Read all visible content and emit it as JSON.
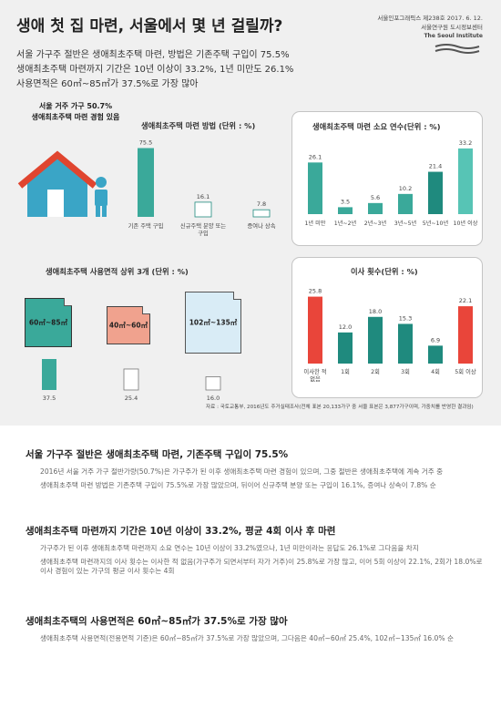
{
  "header": {
    "title": "생애 첫 집 마련, 서울에서 몇 년 걸릴까?",
    "series_no": "서울인포그래픽스 제238호 2017. 6. 12.",
    "org": "서울연구원 도시정보센터",
    "org_en": "The Seoul Institute",
    "subtitles": [
      "서울 가구주 절반은 생애최초주택 마련, 방법은 기존주택 구입이 75.5%",
      "생애최초주택 마련까지 기간은 10년 이상이 33.2%, 1년 미만도 26.1%",
      "사용면적은 60㎡~85㎡가 37.5%로 가장 많아"
    ]
  },
  "house_note": {
    "line1": "서울 거주 가구 50.7%",
    "line2": "생애최초주택 마련 경험 있음"
  },
  "colors": {
    "teal": "#3aa99a",
    "teal_dark": "#1f8a7e",
    "red": "#e9453a",
    "salmon": "#f0a28e",
    "light_blue": "#d9ecf6",
    "background": "#f0f0f0",
    "house_blue": "#3aa5c6",
    "roof_red": "#e0452f"
  },
  "chart_data": [
    {
      "type": "bar",
      "title": "생애최초주택 마련 방법 (단위 : %)",
      "categories": [
        "기존 주택 구입",
        "신규주택 분양 또는 구입",
        "증여나 상속"
      ],
      "values": [
        75.5,
        16.1,
        7.8
      ]
    },
    {
      "type": "bar",
      "title": "생애최초주택 마련 소요 연수(단위 : %)",
      "categories": [
        "1년 미만",
        "1년~2년",
        "2년~3년",
        "3년~5년",
        "5년~10년",
        "10년 이상"
      ],
      "values": [
        26.1,
        3.5,
        5.6,
        10.2,
        21.4,
        33.2
      ]
    },
    {
      "type": "bar",
      "title": "생애최초주택 사용면적 상위 3개 (단위 : %)",
      "categories": [
        "60㎡~85㎡",
        "40㎡~60㎡",
        "102㎡~135㎡"
      ],
      "values": [
        37.5,
        25.4,
        16.0
      ]
    },
    {
      "type": "bar",
      "title": "이사 횟수(단위 : %)",
      "categories": [
        "이사한 적 없음",
        "1회",
        "2회",
        "3회",
        "4회",
        "5회 이상"
      ],
      "values": [
        25.8,
        12.0,
        18.0,
        15.3,
        6.9,
        22.1
      ]
    }
  ],
  "source": "자료 : 국토교통부, 2016년도 주거실태조사(전체 표본 20,133가구 중 서울 표본은 3,877가구이며, 가중치를 반영한 결과임)",
  "sections": [
    {
      "heading": "서울 가구주 절반은 생애최초주택 마련, 기존주택 구입이 75.5%",
      "paras": [
        "2016년 서울 거주 가구 절반가량(50.7%)은 가구주가 된 이후 생애최초주택 마련 경험이 있으며, 그중 절반은 생애최초주택에 계속 거주 중",
        "생애최초주택 마련 방법은 기존주택 구입이 75.5%로 가장 많았으며, 뒤이어 신규주택 분양 또는 구입이 16.1%, 증여나 상속이 7.8% 순"
      ]
    },
    {
      "heading": "생애최초주택 마련까지 기간은 10년 이상이 33.2%, 평균 4회 이사 후 마련",
      "paras": [
        "가구주가 된 이후 생애최초주택 마련까지 소요 연수는 10년 이상이 33.2%였으나, 1년 미만이라는 응답도 26.1%로 그다음을 차지",
        "생애최초주택 마련까지의 이사 횟수는 이사한 적 없음(가구주가 되면서부터 자가 거주)이 25.8%로 가장 많고, 이어 5회 이상이 22.1%, 2회가 18.0%로 이사 경험이 있는 가구의 평균 이사 횟수는 4회"
      ]
    },
    {
      "heading": "생애최초주택의 사용면적은 60㎡~85㎡가 37.5%로 가장 많아",
      "paras": [
        "생애최초주택 사용면적(전용면적 기준)은 60㎡~85㎡가 37.5%로 가장 많았으며, 그다음은 40㎡~60㎡ 25.4%, 102㎡~135㎡ 16.0% 순"
      ]
    }
  ]
}
